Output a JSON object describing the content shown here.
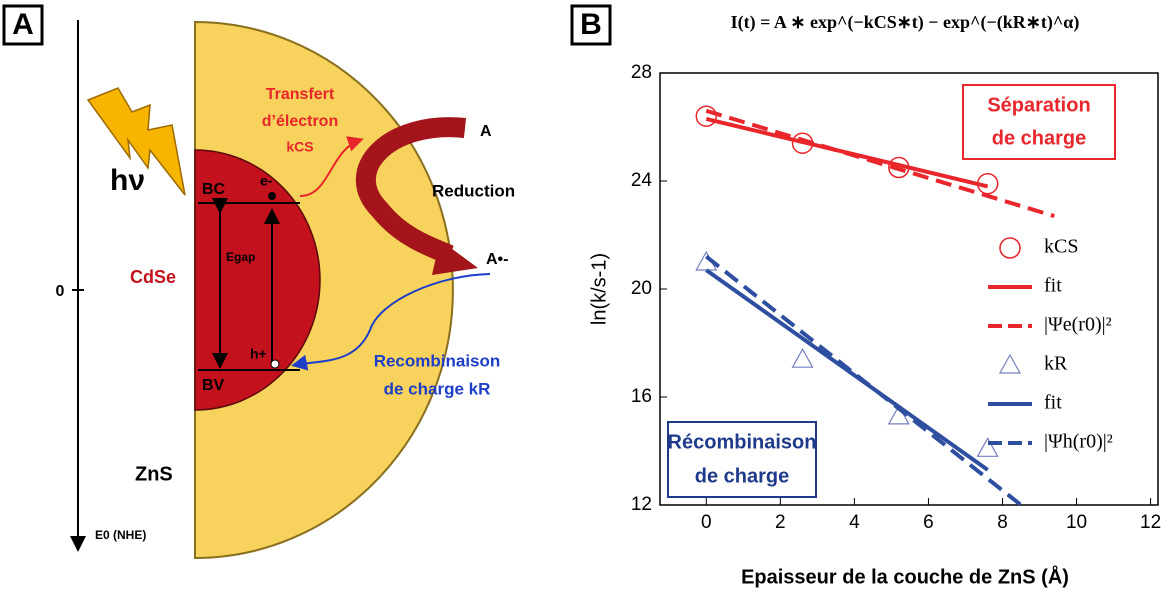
{
  "panel_a": {
    "label": "A",
    "hv": "hν",
    "zero": "0",
    "axis_label": "E0 (NHE)",
    "bc": "BC",
    "bv": "BV",
    "electron": "e-",
    "hole": "h+",
    "egap": "Egap",
    "core": "CdSe",
    "shell": "ZnS",
    "transfer": "Transfert",
    "transfer2": "d’électron",
    "kcs": "kCS",
    "acceptor": "A",
    "reduction": "Reduction",
    "radical": "A•-",
    "recomb": "Recombinaison",
    "recomb2": "de charge kR"
  },
  "chart_data": {
    "type": "scatter",
    "panel_label": "B",
    "title": "I(t) = A ∗ exp^(−kCS∗t) − exp^(−(kR∗t)^α)",
    "x_label": "Epaisseur de la couche de ZnS (Å)",
    "y_label": "ln(k/s-1)",
    "xlim": [
      -1.25,
      12.2
    ],
    "ylim": [
      12,
      28
    ],
    "xticks": [
      0,
      2,
      4,
      6,
      8,
      10,
      12
    ],
    "yticks": [
      12,
      16,
      20,
      24,
      28
    ],
    "legend": "right",
    "annotations": [
      "Séparation",
      "de charge",
      "Récombinaison",
      "de charge"
    ],
    "series": [
      {
        "name": "kCS",
        "color": "#e8262b",
        "marker": "circle",
        "x": [
          0,
          2.6,
          5.2,
          7.6
        ],
        "values": [
          26.4,
          25.4,
          24.5,
          23.9
        ]
      },
      {
        "name": "fit",
        "color": "#e8262b",
        "line": "solid",
        "x": [
          0,
          7.6
        ],
        "values": [
          26.3,
          23.8
        ]
      },
      {
        "name": "|Ψe(r0)|²",
        "color": "#e8262b",
        "line": "dashed",
        "x": [
          0,
          9.4
        ],
        "values": [
          26.6,
          22.7
        ]
      },
      {
        "name": "kR",
        "color": "#2e4ea0",
        "marker": "triangle",
        "x": [
          0,
          2.6,
          5.2,
          7.6
        ],
        "values": [
          21.0,
          17.4,
          15.3,
          14.1
        ]
      },
      {
        "name": "fit",
        "color": "#2e4ea0",
        "line": "solid",
        "x": [
          0,
          7.6
        ],
        "values": [
          20.7,
          13.3
        ]
      },
      {
        "name": "|Ψh(r0)|²",
        "color": "#2e4ea0",
        "line": "dashed",
        "x": [
          0,
          8.5
        ],
        "values": [
          21.2,
          12.0
        ]
      }
    ]
  }
}
